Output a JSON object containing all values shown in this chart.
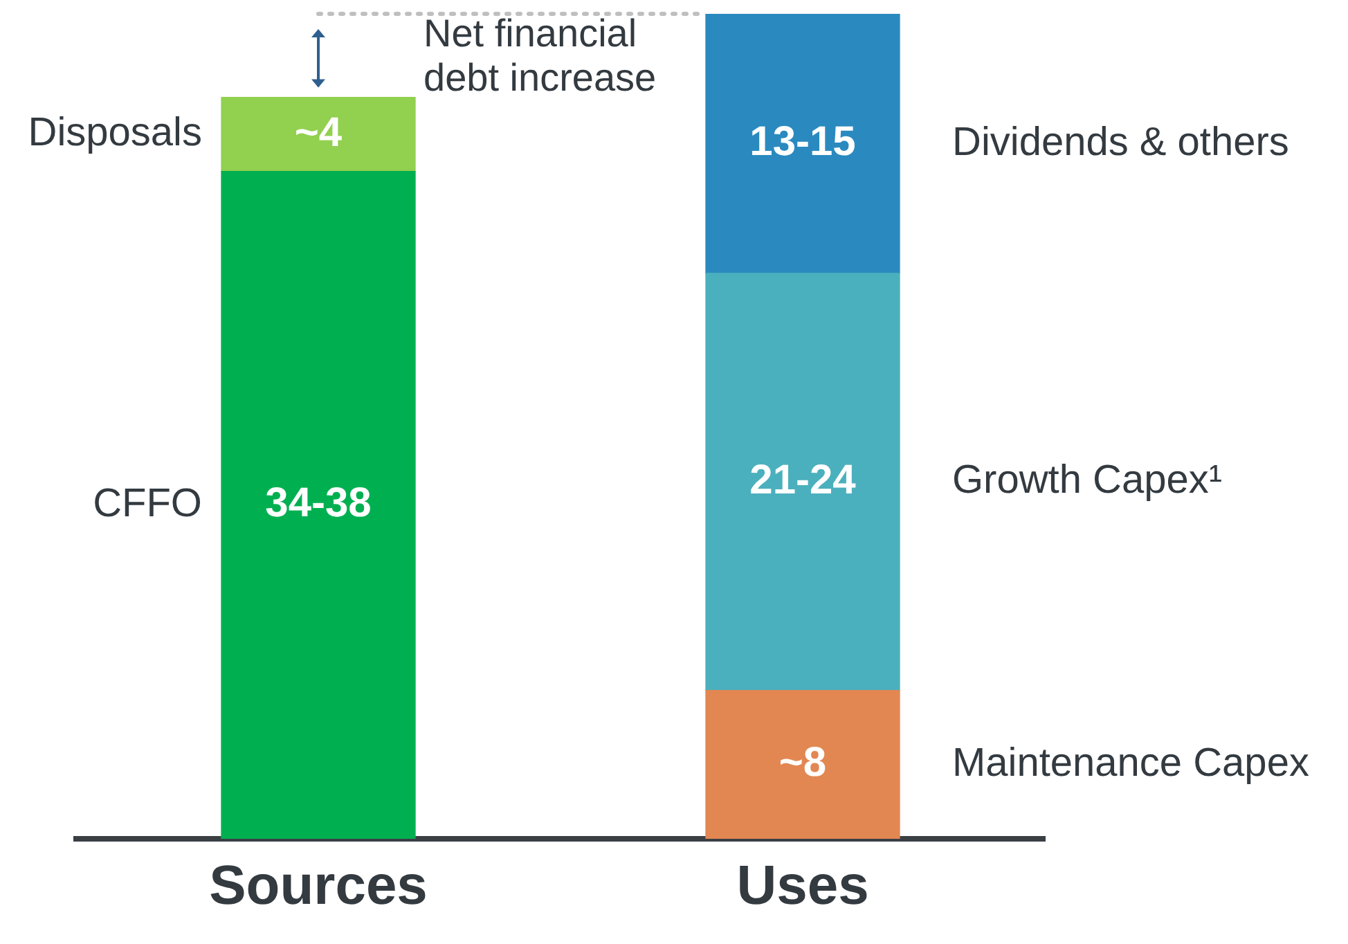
{
  "chart_data": {
    "type": "bar",
    "stacked": true,
    "legend": false,
    "grid": false,
    "tick_labels": "x",
    "categories": [
      "Sources",
      "Uses"
    ],
    "ylim": [
      0,
      44.5
    ],
    "series": [
      {
        "name": "CFFO",
        "color": "#00b050",
        "values": [
          36,
          null
        ],
        "value_labels": [
          "34-38",
          null
        ]
      },
      {
        "name": "Disposals",
        "color": "#92d050",
        "values": [
          4,
          null
        ],
        "value_labels": [
          "~4",
          null
        ]
      },
      {
        "name": "Maintenance Capex",
        "color": "#e38752",
        "values": [
          null,
          8
        ],
        "value_labels": [
          null,
          "~8"
        ]
      },
      {
        "name": "Growth Capex¹",
        "color": "#4bb0bd",
        "values": [
          null,
          22.5
        ],
        "value_labels": [
          null,
          "21-24"
        ]
      },
      {
        "name": "Dividends & others",
        "color": "#2a8abf",
        "values": [
          null,
          14
        ],
        "value_labels": [
          null,
          "13-15"
        ]
      }
    ],
    "ref_lines": [
      {
        "axis": "y",
        "value": 44.5,
        "label": "Net financial debt increase",
        "line_style": "dotted",
        "color": "#bfbfbf"
      }
    ]
  }
}
